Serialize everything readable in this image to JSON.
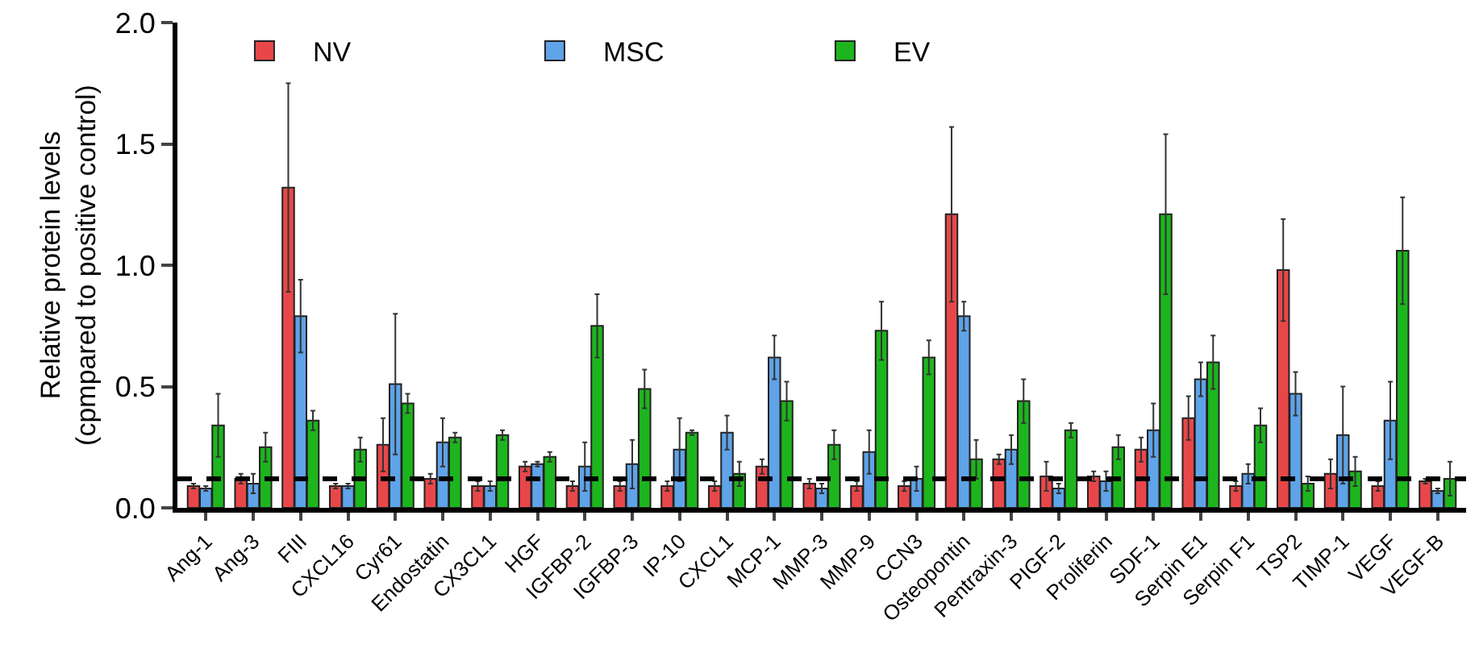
{
  "chart_data": {
    "type": "bar",
    "ylabel": "Relative protein levels\n(cpmpared to positive control)",
    "categories": [
      "Ang-1",
      "Ang-3",
      "FIII",
      "CXCL16",
      "Cyr61",
      "Endostatin",
      "CX3CL1",
      "HGF",
      "IGFBP-2",
      "IGFBP-3",
      "IP-10",
      "CXCL1",
      "MCP-1",
      "MMP-3",
      "MMP-9",
      "CCN3",
      "Osteopontin",
      "Pentraxin-3",
      "PIGF-2",
      "Proliferin",
      "SDF-1",
      "Serpin E1",
      "Serpin F1",
      "TSP2",
      "TIMP-1",
      "VEGF",
      "VEGF-B"
    ],
    "series": [
      {
        "name": "NV",
        "color": "#e8474a",
        "values": [
          0.09,
          0.12,
          1.32,
          0.09,
          0.26,
          0.12,
          0.09,
          0.17,
          0.09,
          0.09,
          0.09,
          0.09,
          0.17,
          0.1,
          0.09,
          0.09,
          1.21,
          0.2,
          0.13,
          0.13,
          0.24,
          0.37,
          0.09,
          0.98,
          0.14,
          0.09,
          0.11
        ],
        "errors": [
          0.01,
          0.02,
          0.43,
          0.01,
          0.11,
          0.02,
          0.02,
          0.02,
          0.02,
          0.02,
          0.02,
          0.02,
          0.03,
          0.02,
          0.02,
          0.02,
          0.36,
          0.02,
          0.06,
          0.02,
          0.05,
          0.09,
          0.02,
          0.21,
          0.06,
          0.02,
          0.01
        ]
      },
      {
        "name": "MSC",
        "color": "#5fa3e8",
        "values": [
          0.08,
          0.1,
          0.79,
          0.09,
          0.51,
          0.27,
          0.09,
          0.18,
          0.17,
          0.18,
          0.24,
          0.31,
          0.62,
          0.08,
          0.23,
          0.12,
          0.79,
          0.24,
          0.08,
          0.11,
          0.32,
          0.53,
          0.14,
          0.47,
          0.3,
          0.36,
          0.07
        ],
        "errors": [
          0.01,
          0.04,
          0.15,
          0.01,
          0.29,
          0.1,
          0.02,
          0.01,
          0.1,
          0.1,
          0.13,
          0.07,
          0.09,
          0.02,
          0.09,
          0.05,
          0.06,
          0.06,
          0.02,
          0.04,
          0.11,
          0.07,
          0.04,
          0.09,
          0.2,
          0.16,
          0.01
        ]
      },
      {
        "name": "EV",
        "color": "#1db51d",
        "values": [
          0.34,
          0.25,
          0.36,
          0.24,
          0.43,
          0.29,
          0.3,
          0.21,
          0.75,
          0.49,
          0.31,
          0.14,
          0.44,
          0.26,
          0.73,
          0.62,
          0.2,
          0.44,
          0.32,
          0.25,
          1.21,
          0.6,
          0.34,
          0.1,
          0.15,
          1.06,
          0.12
        ],
        "errors": [
          0.13,
          0.06,
          0.04,
          0.05,
          0.04,
          0.02,
          0.02,
          0.02,
          0.13,
          0.08,
          0.01,
          0.05,
          0.08,
          0.06,
          0.12,
          0.07,
          0.08,
          0.09,
          0.03,
          0.05,
          0.33,
          0.11,
          0.07,
          0.03,
          0.06,
          0.22,
          0.07
        ]
      }
    ],
    "ylim": [
      0,
      2.0
    ],
    "yticks": [
      {
        "value": 0,
        "label": "0.0"
      },
      {
        "value": 0.5,
        "label": "0.5"
      },
      {
        "value": 1,
        "label": "1.0"
      },
      {
        "value": 1.5,
        "label": "1.5"
      },
      {
        "value": 2,
        "label": "2.0"
      }
    ],
    "ref_lines": [
      {
        "axis": "y",
        "value": 0.12,
        "color": "#000000",
        "line_style": "dashed"
      }
    ],
    "legend": "top left",
    "grid": false
  }
}
